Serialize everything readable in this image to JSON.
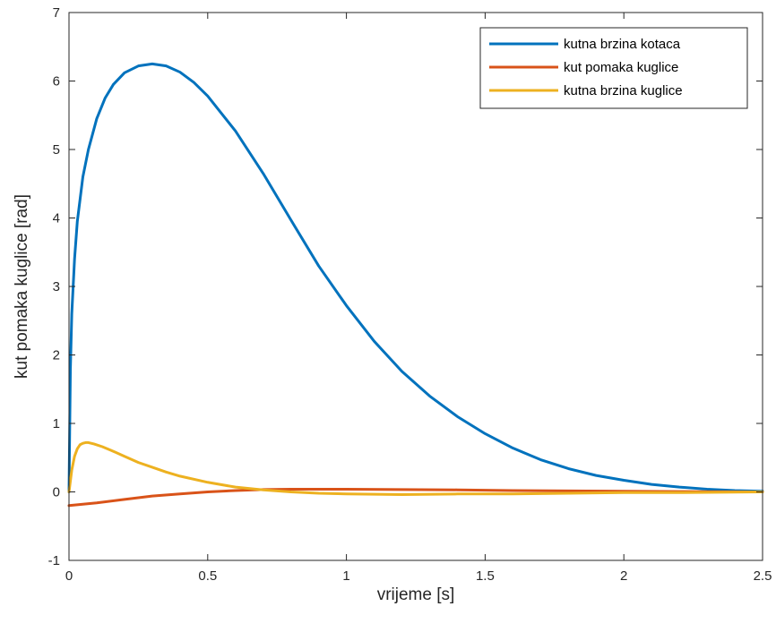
{
  "chart_data": {
    "type": "line",
    "xlabel": "vrijeme [s]",
    "ylabel": "kut pomaka kuglice [rad]",
    "xlim": [
      0,
      2.5
    ],
    "ylim": [
      -1,
      7
    ],
    "xticks": [
      0,
      0.5,
      1,
      1.5,
      2,
      2.5
    ],
    "xtick_labels": [
      "0",
      "0.5",
      "1",
      "1.5",
      "2",
      "2.5"
    ],
    "yticks": [
      -1,
      0,
      1,
      2,
      3,
      4,
      5,
      6,
      7
    ],
    "ytick_labels": [
      "-1",
      "0",
      "1",
      "2",
      "3",
      "4",
      "5",
      "6",
      "7"
    ],
    "grid": false,
    "legend_position": "top-right",
    "series": [
      {
        "name": "kutna brzina kotaca",
        "color": "#0072BD",
        "x": [
          0,
          0.005,
          0.01,
          0.02,
          0.03,
          0.05,
          0.07,
          0.1,
          0.13,
          0.16,
          0.2,
          0.25,
          0.3,
          0.35,
          0.4,
          0.45,
          0.5,
          0.6,
          0.7,
          0.8,
          0.9,
          1.0,
          1.1,
          1.2,
          1.3,
          1.4,
          1.5,
          1.6,
          1.7,
          1.8,
          1.9,
          2.0,
          2.1,
          2.2,
          2.3,
          2.4,
          2.5
        ],
        "y": [
          0,
          1.8,
          2.6,
          3.4,
          3.95,
          4.6,
          5.0,
          5.45,
          5.75,
          5.95,
          6.12,
          6.22,
          6.25,
          6.22,
          6.13,
          5.98,
          5.78,
          5.27,
          4.65,
          3.97,
          3.3,
          2.72,
          2.2,
          1.76,
          1.4,
          1.1,
          0.85,
          0.64,
          0.47,
          0.34,
          0.24,
          0.17,
          0.11,
          0.07,
          0.04,
          0.02,
          0.01
        ]
      },
      {
        "name": "kut pomaka kuglice",
        "color": "#D95319",
        "x": [
          0,
          0.1,
          0.2,
          0.3,
          0.4,
          0.5,
          0.6,
          0.7,
          0.8,
          0.9,
          1.0,
          1.2,
          1.4,
          1.6,
          1.8,
          2.0,
          2.2,
          2.5
        ],
        "y": [
          -0.2,
          -0.16,
          -0.11,
          -0.06,
          -0.03,
          0.0,
          0.02,
          0.035,
          0.04,
          0.04,
          0.04,
          0.035,
          0.03,
          0.02,
          0.015,
          0.01,
          0.005,
          0.0
        ]
      },
      {
        "name": "kutna brzina kuglice",
        "color": "#EDB120",
        "x": [
          0,
          0.01,
          0.02,
          0.03,
          0.04,
          0.05,
          0.06,
          0.07,
          0.09,
          0.12,
          0.15,
          0.2,
          0.25,
          0.3,
          0.35,
          0.4,
          0.5,
          0.6,
          0.7,
          0.8,
          0.9,
          1.0,
          1.2,
          1.4,
          1.6,
          1.8,
          2.0,
          2.2,
          2.5
        ],
        "y": [
          0,
          0.32,
          0.52,
          0.63,
          0.69,
          0.71,
          0.72,
          0.72,
          0.7,
          0.66,
          0.61,
          0.52,
          0.43,
          0.36,
          0.29,
          0.23,
          0.14,
          0.07,
          0.03,
          0.0,
          -0.02,
          -0.03,
          -0.04,
          -0.03,
          -0.03,
          -0.02,
          -0.01,
          -0.01,
          0.0
        ]
      }
    ]
  }
}
